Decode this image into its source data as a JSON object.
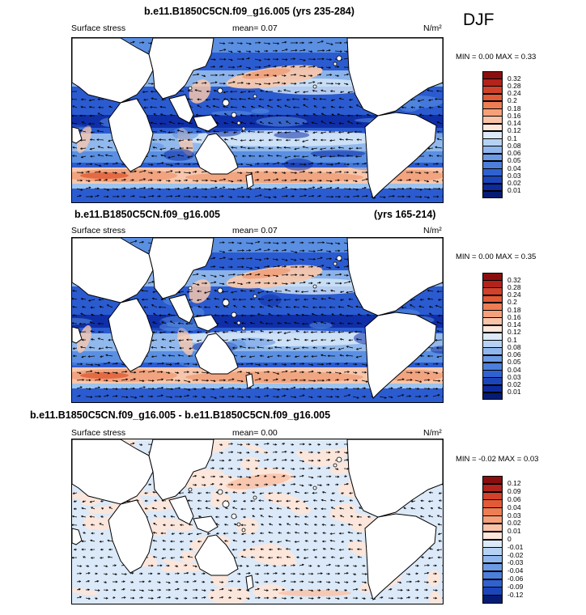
{
  "season": "DJF",
  "panels": [
    {
      "title": "b.e11.B1850C5CN.f09_g16.005 (yrs 235-284)",
      "title_right": "",
      "variable": "Surface stress",
      "mean_text": "mean=  0.07",
      "units": "N/m²",
      "minmax": "MIN =  0.00 MAX =  0.33",
      "kind": "abs",
      "colorbar": {
        "labels": [
          "0.32",
          "0.28",
          "0.24",
          "0.2",
          "0.18",
          "0.16",
          "0.14",
          "0.12",
          "0.1",
          "0.08",
          "0.06",
          "0.05",
          "0.04",
          "0.03",
          "0.02",
          "0.01"
        ],
        "colors": [
          "#8b0e0e",
          "#b3221b",
          "#d2412a",
          "#e35a36",
          "#ee7d54",
          "#f6a07a",
          "#f9c3a8",
          "#fde6da",
          "#dbe9f8",
          "#b5d2f3",
          "#8fb7ee",
          "#6c9be6",
          "#4c7fdc",
          "#2f62d0",
          "#1b45b9",
          "#0d2b9c",
          "#061c74"
        ]
      }
    },
    {
      "title": "b.e11.B1850C5CN.f09_g16.005",
      "title_right": "(yrs 165-214)",
      "variable": "Surface stress",
      "mean_text": "mean=  0.07",
      "units": "N/m²",
      "minmax": "MIN =  0.00 MAX =  0.35",
      "kind": "abs",
      "colorbar": {
        "labels": [
          "0.32",
          "0.28",
          "0.24",
          "0.2",
          "0.18",
          "0.16",
          "0.14",
          "0.12",
          "0.1",
          "0.08",
          "0.06",
          "0.05",
          "0.04",
          "0.03",
          "0.02",
          "0.01"
        ],
        "colors": [
          "#8b0e0e",
          "#b3221b",
          "#d2412a",
          "#e35a36",
          "#ee7d54",
          "#f6a07a",
          "#f9c3a8",
          "#fde6da",
          "#dbe9f8",
          "#b5d2f3",
          "#8fb7ee",
          "#6c9be6",
          "#4c7fdc",
          "#2f62d0",
          "#1b45b9",
          "#0d2b9c",
          "#061c74"
        ]
      }
    },
    {
      "title": "b.e11.B1850C5CN.f09_g16.005 - b.e11.B1850C5CN.f09_g16.005",
      "title_right": "",
      "variable": "Surface stress",
      "mean_text": "mean=  0.00",
      "units": "N/m²",
      "minmax": "MIN = -0.02 MAX =  0.03",
      "kind": "diff",
      "colorbar": {
        "labels": [
          "0.12",
          "0.09",
          "0.06",
          "0.04",
          "0.03",
          "0.02",
          "0.01",
          "0",
          "-0.01",
          "-0.02",
          "-0.03",
          "-0.04",
          "-0.06",
          "-0.09",
          "-0.12"
        ],
        "colors": [
          "#8b0e0e",
          "#b3221b",
          "#d2412a",
          "#e35a36",
          "#ee7d54",
          "#f6a07a",
          "#f9c3a8",
          "#fde6da",
          "#dbe9f8",
          "#b5d2f3",
          "#8fb7ee",
          "#6c9be6",
          "#4c7fdc",
          "#2f62d0",
          "#1b45b9",
          "#061c74"
        ]
      }
    }
  ]
}
